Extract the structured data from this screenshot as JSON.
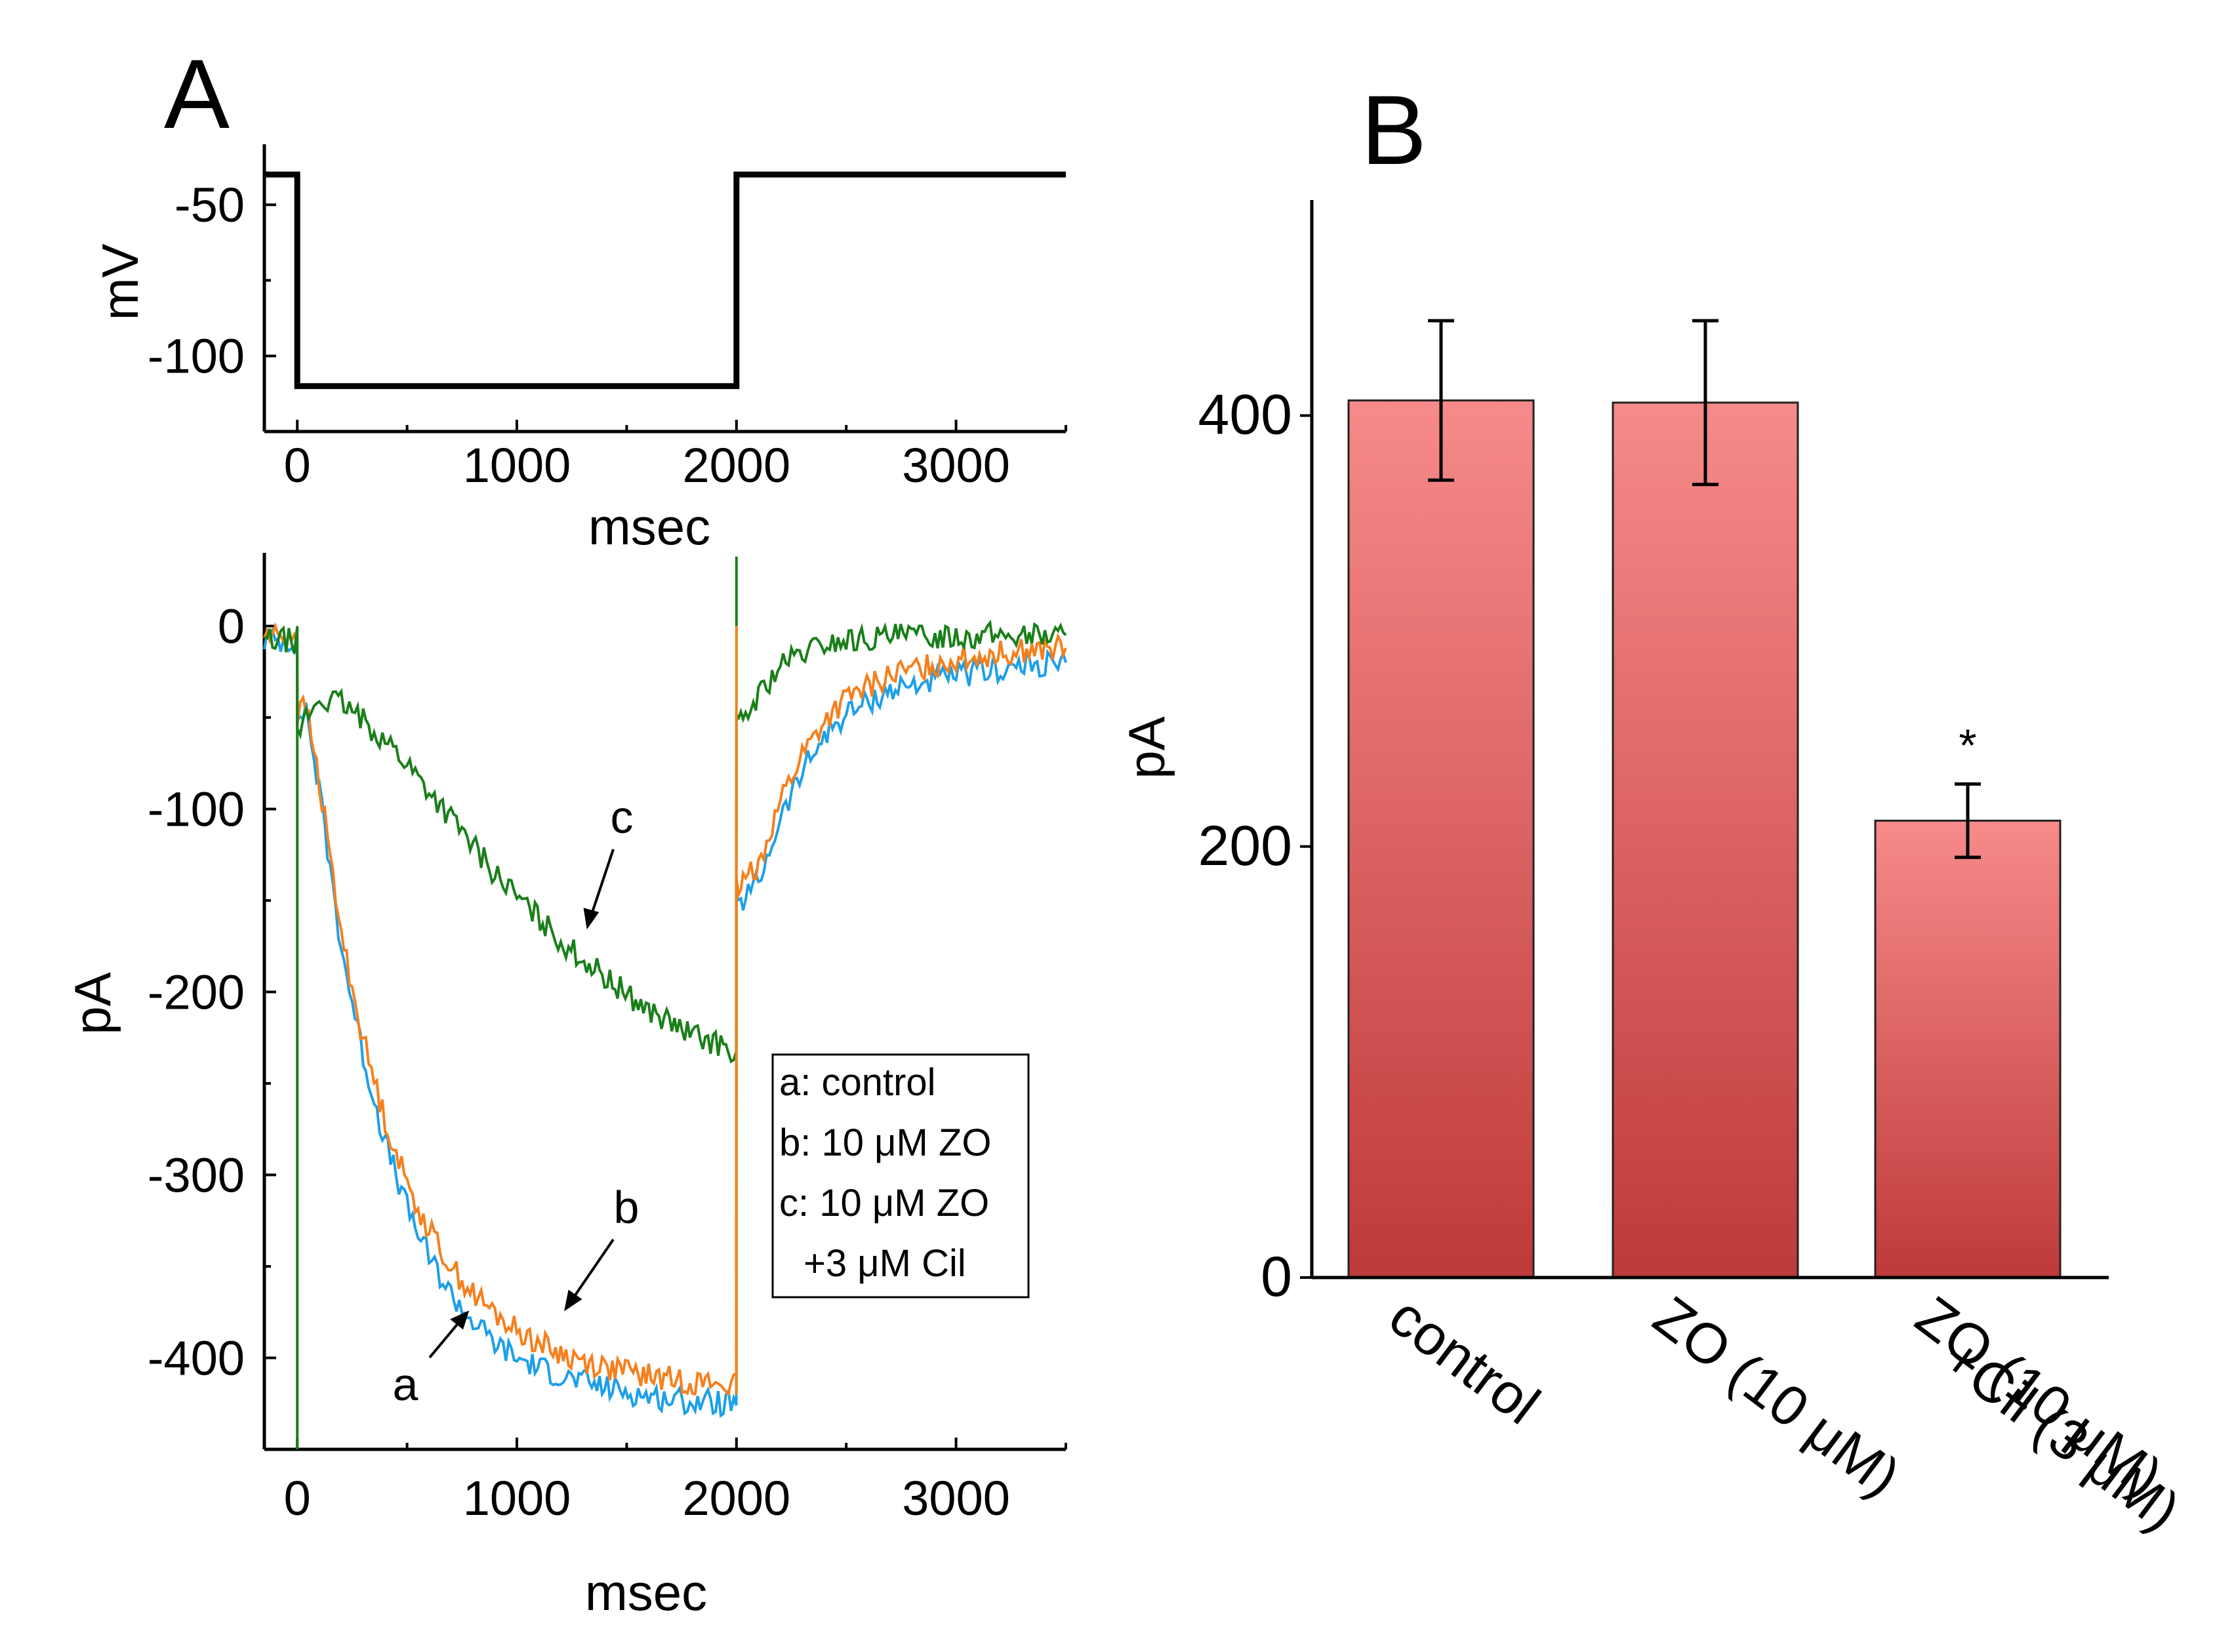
{
  "figure": {
    "panel_a_label": "A",
    "panel_b_label": "B"
  },
  "chart_data": [
    {
      "id": "voltage",
      "type": "line",
      "title": "",
      "xlabel": "msec",
      "ylabel": "mV",
      "xlim": [
        -150,
        3500
      ],
      "ylim": [
        -125,
        -30
      ],
      "xticks": [
        0,
        1000,
        2000,
        3000
      ],
      "xtick_labels": [
        "0",
        "1000",
        "2000",
        "3000"
      ],
      "yticks": [
        -100,
        -50
      ],
      "ytick_labels": [
        "-100",
        "-50"
      ],
      "grid": false,
      "series": [
        {
          "name": "command voltage",
          "color": "#000000",
          "x": [
            -150,
            0,
            0,
            2000,
            2000,
            3500
          ],
          "y": [
            -40,
            -40,
            -110,
            -110,
            -40,
            -40
          ]
        }
      ]
    },
    {
      "id": "current",
      "type": "line",
      "title": "",
      "xlabel": "msec",
      "ylabel": "pA",
      "xlim": [
        -150,
        3500
      ],
      "ylim": [
        -450,
        40
      ],
      "xticks": [
        0,
        1000,
        2000,
        3000
      ],
      "xtick_labels": [
        "0",
        "1000",
        "2000",
        "3000"
      ],
      "yticks": [
        -400,
        -300,
        -200,
        -100,
        0
      ],
      "ytick_labels": [
        "-400",
        "-300",
        "-200",
        "-100",
        "0"
      ],
      "grid": false,
      "legend": {
        "position": "lower-right",
        "entries": [
          "a: control",
          "b: 10 μM ZO",
          "c: 10 μM ZO",
          "+3 μM Cil"
        ]
      },
      "annotations": [
        {
          "text": "a",
          "series": "a: control"
        },
        {
          "text": "b",
          "series": "b: 10 μM ZO"
        },
        {
          "text": "c",
          "series": "c: 10 μM ZO +3 μM Cil"
        }
      ],
      "series": [
        {
          "name": "a: control",
          "color": "#1E9FE8",
          "x": [
            -150,
            -1,
            0,
            40,
            100,
            200,
            300,
            400,
            500,
            600,
            700,
            800,
            900,
            1000,
            1200,
            1400,
            1600,
            1800,
            1999,
            2000,
            2030,
            2100,
            2200,
            2300,
            2400,
            2500,
            2700,
            3000,
            3250,
            3500
          ],
          "y": [
            -8,
            -8,
            -50,
            -45,
            -90,
            -175,
            -235,
            -282,
            -318,
            -345,
            -365,
            -380,
            -392,
            -400,
            -410,
            -416,
            -421,
            -424,
            -425,
            -155,
            -150,
            -140,
            -105,
            -80,
            -60,
            -48,
            -35,
            -27,
            -23,
            -20
          ]
        },
        {
          "name": "b: 10 μM ZO",
          "color": "#F5801E",
          "x": [
            -150,
            -1,
            0,
            40,
            100,
            200,
            300,
            400,
            500,
            600,
            700,
            800,
            900,
            1000,
            1200,
            1400,
            1600,
            1800,
            1999,
            2000,
            2030,
            2100,
            2200,
            2300,
            2400,
            2500,
            2700,
            3000,
            3250,
            3500
          ],
          "y": [
            -5,
            -5,
            -48,
            -44,
            -85,
            -168,
            -226,
            -270,
            -305,
            -330,
            -350,
            -365,
            -376,
            -385,
            -398,
            -405,
            -410,
            -413,
            -415,
            -145,
            -140,
            -130,
            -95,
            -70,
            -52,
            -40,
            -27,
            -18,
            -14,
            -12
          ]
        },
        {
          "name": "c: 10 μM ZO +3 μM Cil",
          "color": "#1A7F1A",
          "x": [
            -150,
            -1,
            0,
            40,
            100,
            200,
            300,
            400,
            500,
            600,
            700,
            800,
            900,
            1000,
            1200,
            1400,
            1600,
            1800,
            1999,
            2000,
            2030,
            2100,
            2200,
            2300,
            2400,
            2500,
            2700,
            3000,
            3250,
            3500
          ],
          "y": [
            -8,
            -8,
            -60,
            -50,
            -40,
            -42,
            -52,
            -62,
            -75,
            -90,
            -105,
            -120,
            -135,
            -148,
            -172,
            -192,
            -210,
            -224,
            -232,
            -55,
            -52,
            -38,
            -22,
            -15,
            -10,
            -8,
            -6,
            -5,
            -5,
            -5
          ]
        }
      ]
    },
    {
      "id": "bars",
      "type": "bar",
      "title": "",
      "xlabel": "",
      "ylabel": "pA",
      "ylim": [
        0,
        500
      ],
      "yticks": [
        0,
        200,
        400
      ],
      "ytick_labels": [
        "0",
        "200",
        "400"
      ],
      "grid": false,
      "categories": [
        "control",
        "ZO (10 μM)",
        "ZO (10 μM) +Cil (3 μM)"
      ],
      "category_lines": [
        [
          "control"
        ],
        [
          "ZO (10 μM)"
        ],
        [
          "ZO (10 μM)",
          "+Cil (3 μM)"
        ]
      ],
      "values": [
        407,
        406,
        212
      ],
      "errors": [
        37,
        38,
        17
      ],
      "significance": [
        "",
        "",
        "*"
      ],
      "bar_color_top": "#F78A8A",
      "bar_color_bottom": "#BF3A3A"
    }
  ]
}
